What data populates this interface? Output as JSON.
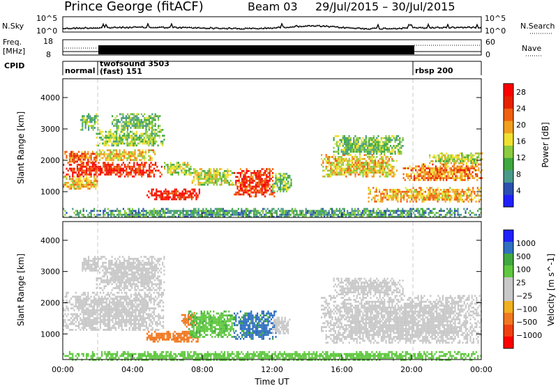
{
  "header": {
    "station": "Prince George (fitACF)",
    "beam": "Beam 03",
    "date_range": "29/Jul/2015 – 30/Jul/2015"
  },
  "strip_labels": {
    "nsky": "N.Sky",
    "nsky_ticks": [
      "10^5",
      "10^0"
    ],
    "nsearch": "N.Search",
    "nsearch_ticks": [
      "10^5",
      "10^0"
    ],
    "freq": "Freq.",
    "freq_unit": "[MHz]",
    "freq_ticks": [
      "18",
      "8"
    ],
    "nave": "Nave",
    "nave_ticks": [
      "60",
      "0"
    ],
    "cpid": "CPID"
  },
  "cpid_modes": [
    {
      "line1": "normal",
      "line2": "",
      "start_h": 0.0
    },
    {
      "line1": "twofsound 3503",
      "line2": "(fast) 151",
      "start_h": 1.9
    },
    {
      "line1": "rbsp 200",
      "line2": "",
      "start_h": 19.9
    }
  ],
  "colors": {
    "power_scale": [
      "#2020ff",
      "#2a50b0",
      "#4a9a8a",
      "#40a840",
      "#8ccc40",
      "#f0e030",
      "#f0a020",
      "#f06010",
      "#e82000",
      "#ff0000"
    ],
    "velocity_scale": [
      "#ff0000",
      "#f04010",
      "#f07820",
      "#f0b020",
      "#c8c8c8",
      "#c8c8c8",
      "#60c840",
      "#40a840",
      "#3070c0",
      "#2020ff"
    ],
    "dashed_line": "#c8c8c8"
  },
  "chart_data": [
    {
      "type": "heatmap",
      "quantity": "power",
      "xlabel": "",
      "ylabel": "Slant Range [km]",
      "x_ticks": [
        "00:00",
        "04:00",
        "08:00",
        "12:00",
        "16:00",
        "20:00",
        "00:00"
      ],
      "y_ticks": [
        "1000",
        "2000",
        "3000",
        "4000"
      ],
      "xlim_hours": [
        0,
        24
      ],
      "ylim_km": [
        180,
        4600
      ],
      "colorbar": {
        "label": "Power [dB]",
        "ticks": [
          "4",
          "8",
          "12",
          "16",
          "20",
          "24",
          "28"
        ],
        "range": [
          0,
          30
        ]
      },
      "regions": [
        {
          "t0": 0.0,
          "t1": 5.7,
          "r0": 1500,
          "r1": 1950,
          "level": 26
        },
        {
          "t0": 0.0,
          "t1": 2.0,
          "r0": 1950,
          "r1": 2300,
          "level": 22
        },
        {
          "t0": 0.0,
          "t1": 2.0,
          "r0": 1100,
          "r1": 1500,
          "level": 18
        },
        {
          "t0": 1.9,
          "t1": 5.4,
          "r0": 2000,
          "r1": 2350,
          "level": 17
        },
        {
          "t0": 1.9,
          "t1": 5.8,
          "r0": 2450,
          "r1": 3000,
          "level": 13
        },
        {
          "t0": 2.8,
          "t1": 5.6,
          "r0": 3000,
          "r1": 3500,
          "level": 11
        },
        {
          "t0": 1.0,
          "t1": 2.0,
          "r0": 3000,
          "r1": 3500,
          "level": 11
        },
        {
          "t0": 4.8,
          "t1": 7.8,
          "r0": 750,
          "r1": 1100,
          "level": 27
        },
        {
          "t0": 5.8,
          "t1": 7.3,
          "r0": 1550,
          "r1": 1950,
          "level": 14
        },
        {
          "t0": 7.3,
          "t1": 9.8,
          "r0": 1200,
          "r1": 1750,
          "level": 15
        },
        {
          "t0": 9.8,
          "t1": 12.1,
          "r0": 850,
          "r1": 1750,
          "level": 25
        },
        {
          "t0": 12.0,
          "t1": 13.1,
          "r0": 1000,
          "r1": 1600,
          "level": 12
        },
        {
          "t0": 14.8,
          "t1": 19.2,
          "r0": 1500,
          "r1": 2200,
          "level": 17
        },
        {
          "t0": 15.5,
          "t1": 19.5,
          "r0": 2200,
          "r1": 2800,
          "level": 12
        },
        {
          "t0": 17.5,
          "t1": 24.0,
          "r0": 700,
          "r1": 1150,
          "level": 19
        },
        {
          "t0": 19.5,
          "t1": 24.0,
          "r0": 1350,
          "r1": 1900,
          "level": 21
        },
        {
          "t0": 21.0,
          "t1": 24.0,
          "r0": 1900,
          "r1": 2250,
          "level": 15
        },
        {
          "t0": 0.0,
          "t1": 24.0,
          "r0": 180,
          "r1": 480,
          "level": 9
        }
      ]
    },
    {
      "type": "heatmap",
      "quantity": "velocity",
      "xlabel": "Time UT",
      "ylabel": "Slant Range [km]",
      "x_ticks": [
        "00:00",
        "04:00",
        "08:00",
        "12:00",
        "16:00",
        "20:00",
        "00:00"
      ],
      "y_ticks": [
        "1000",
        "2000",
        "3000",
        "4000"
      ],
      "xlim_hours": [
        0,
        24
      ],
      "ylim_km": [
        180,
        4600
      ],
      "colorbar": {
        "label": "Velocity [m s^-1]",
        "ticks": [
          "1000",
          "500",
          "100",
          "25",
          "−25",
          "−100",
          "−500",
          "−1000"
        ]
      },
      "regions": [
        {
          "t0": 0.0,
          "t1": 5.8,
          "r0": 1100,
          "r1": 2350,
          "level": 0
        },
        {
          "t0": 1.9,
          "t1": 5.8,
          "r0": 2400,
          "r1": 3500,
          "level": 0
        },
        {
          "t0": 1.0,
          "t1": 2.0,
          "r0": 3000,
          "r1": 3500,
          "level": 0
        },
        {
          "t0": 4.8,
          "t1": 7.8,
          "r0": 750,
          "r1": 1100,
          "level": -180
        },
        {
          "t0": 6.8,
          "t1": 7.6,
          "r0": 1250,
          "r1": 1700,
          "level": -250
        },
        {
          "t0": 7.2,
          "t1": 9.8,
          "r0": 900,
          "r1": 1750,
          "level": 80
        },
        {
          "t0": 9.8,
          "t1": 12.2,
          "r0": 850,
          "r1": 1750,
          "level": 700
        },
        {
          "t0": 12.0,
          "t1": 13.0,
          "r0": 1000,
          "r1": 1550,
          "level": 0
        },
        {
          "t0": 14.8,
          "t1": 24.0,
          "r0": 700,
          "r1": 2250,
          "level": 0
        },
        {
          "t0": 15.5,
          "t1": 19.5,
          "r0": 2250,
          "r1": 2800,
          "level": 0
        },
        {
          "t0": 0.0,
          "t1": 24.0,
          "r0": 180,
          "r1": 450,
          "level": 60
        }
      ]
    }
  ]
}
